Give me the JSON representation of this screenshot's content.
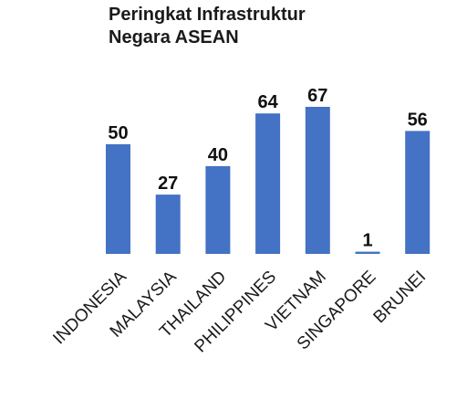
{
  "chart_data": {
    "type": "bar",
    "title_lines": [
      "Peringkat Infrastruktur",
      "Negara ASEAN"
    ],
    "categories": [
      "INDONESIA",
      "MALAYSIA",
      "THAILAND",
      "PHILIPPINES",
      "VIETNAM",
      "SINGAPORE",
      "BRUNEI"
    ],
    "values": [
      50,
      27,
      40,
      64,
      67,
      1,
      56
    ],
    "xlabel": "",
    "ylabel": "",
    "ylim": [
      0,
      67
    ],
    "grid": false,
    "legend": "none",
    "data_labels": true,
    "bar_color": "#4472C4"
  }
}
